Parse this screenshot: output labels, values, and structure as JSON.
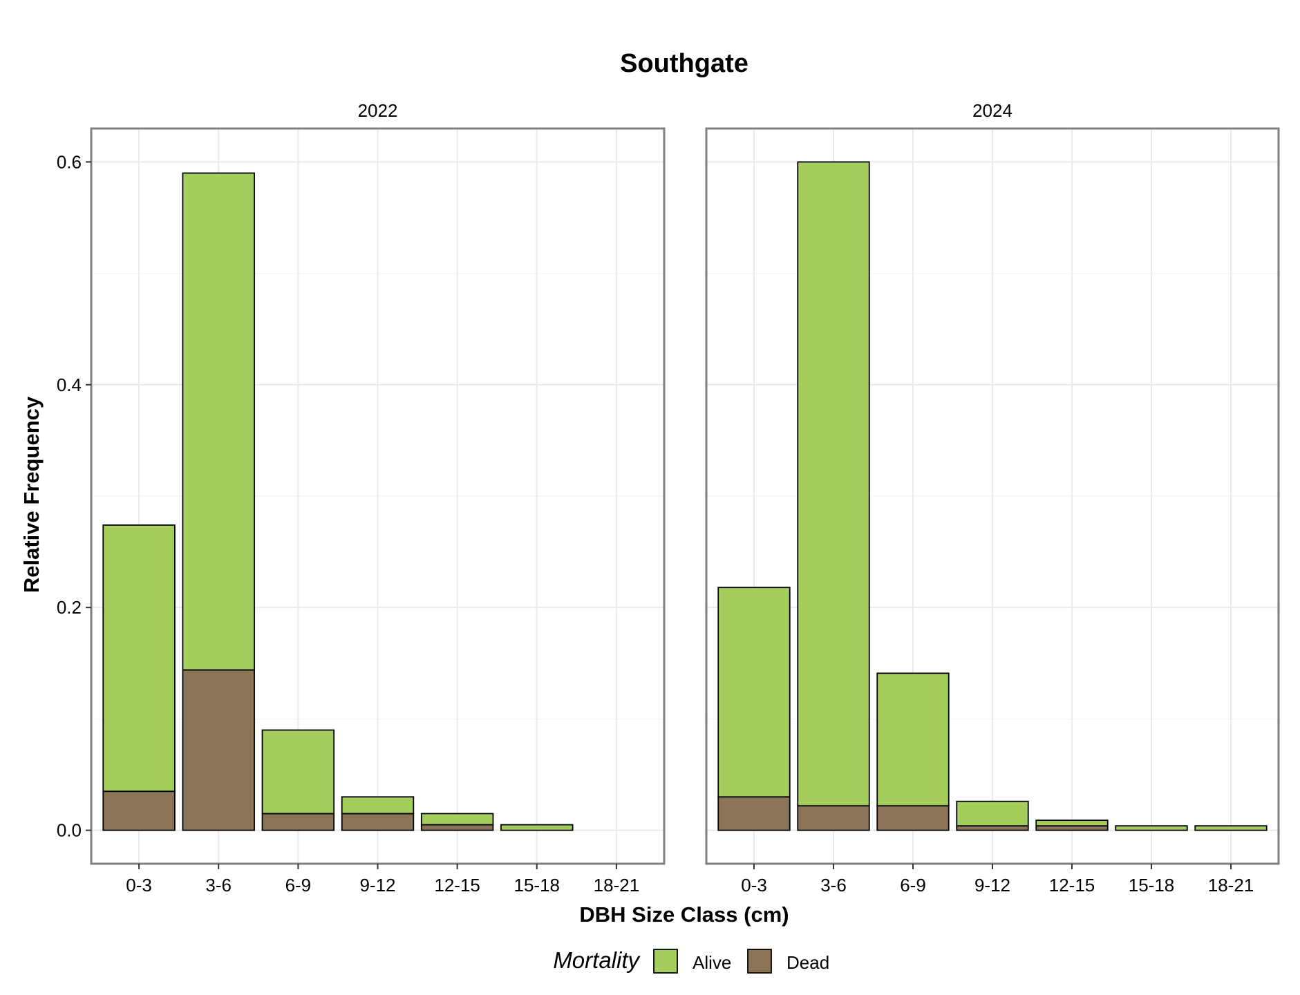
{
  "chart_data": {
    "type": "bar",
    "stacked": true,
    "title": "Southgate",
    "xlabel": "DBH Size Class (cm)",
    "ylabel": "Relative Frequency",
    "ylim": [
      -0.03,
      0.63
    ],
    "yticks": [
      0.0,
      0.2,
      0.4,
      0.6
    ],
    "ytick_labels": [
      "0.0",
      "0.2",
      "0.4",
      "0.6"
    ],
    "categories": [
      "0-3",
      "3-6",
      "6-9",
      "9-12",
      "12-15",
      "15-18",
      "18-21"
    ],
    "grid": true,
    "legend": {
      "title": "Mortality",
      "position": "bottom",
      "entries": [
        {
          "label": "Alive",
          "color": "#a5cd5c"
        },
        {
          "label": "Dead",
          "color": "#8b7355"
        }
      ]
    },
    "panels": [
      {
        "label": "2022",
        "series": [
          {
            "name": "Dead",
            "color": "#8b7355",
            "values": [
              0.035,
              0.144,
              0.015,
              0.015,
              0.005,
              0.0,
              0.0
            ]
          },
          {
            "name": "Alive",
            "color": "#a5cd5c",
            "values": [
              0.239,
              0.446,
              0.075,
              0.015,
              0.01,
              0.005,
              0.0
            ]
          }
        ]
      },
      {
        "label": "2024",
        "series": [
          {
            "name": "Dead",
            "color": "#8b7355",
            "values": [
              0.03,
              0.022,
              0.022,
              0.004,
              0.004,
              0.0,
              0.0
            ]
          },
          {
            "name": "Alive",
            "color": "#a5cd5c",
            "values": [
              0.188,
              0.578,
              0.119,
              0.022,
              0.005,
              0.004,
              0.004
            ]
          }
        ]
      }
    ]
  }
}
